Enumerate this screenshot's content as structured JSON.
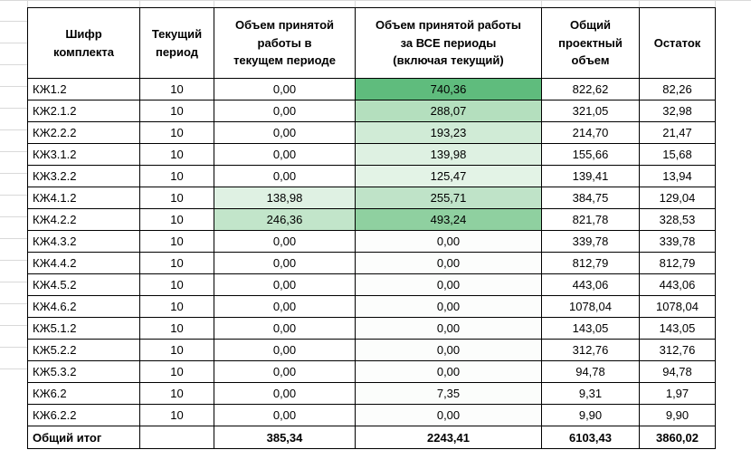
{
  "sheet": {
    "grid_color": "#D9D9D9",
    "cell_border_color": "#000000",
    "scale_max_color": "#63BE7B",
    "headers": {
      "code": "Шифр\nкомплекта",
      "period": "Текущий\nпериод",
      "current": "Объем принятой\nработы в\nтекущем периоде",
      "all_periods": "Объем принятой работы\nза ВСЕ периоды\n(включая текущий)",
      "project": "Общий\nпроектный\nобъем",
      "remainder": "Остаток"
    },
    "rows": [
      {
        "code": "КЖ1.2",
        "period": "10",
        "current": "0,00",
        "current_bg": "#FFFFFF",
        "all_periods": "740,36",
        "all_bg": "#5FBC7D",
        "project": "822,62",
        "remainder": "82,26"
      },
      {
        "code": "КЖ2.1.2",
        "period": "10",
        "current": "0,00",
        "current_bg": "#FFFFFF",
        "all_periods": "288,07",
        "all_bg": "#B4DFBE",
        "project": "321,05",
        "remainder": "32,98"
      },
      {
        "code": "КЖ2.2.2",
        "period": "10",
        "current": "0,00",
        "current_bg": "#FFFFFF",
        "all_periods": "193,23",
        "all_bg": "#D0EBD6",
        "project": "214,70",
        "remainder": "21,47"
      },
      {
        "code": "КЖ3.1.2",
        "period": "10",
        "current": "0,00",
        "current_bg": "#FFFFFF",
        "all_periods": "139,98",
        "all_bg": "#DEF1E2",
        "project": "155,66",
        "remainder": "15,68"
      },
      {
        "code": "КЖ3.2.2",
        "period": "10",
        "current": "0,00",
        "current_bg": "#FFFFFF",
        "all_periods": "125,47",
        "all_bg": "#E3F3E6",
        "project": "139,41",
        "remainder": "13,94"
      },
      {
        "code": "КЖ4.1.2",
        "period": "10",
        "current": "138,98",
        "current_bg": "#DFF1E3",
        "all_periods": "255,71",
        "all_bg": "#BFE3C8",
        "project": "384,75",
        "remainder": "129,04"
      },
      {
        "code": "КЖ4.2.2",
        "period": "10",
        "current": "246,36",
        "current_bg": "#C2E5CA",
        "all_periods": "493,24",
        "all_bg": "#8FD0A0",
        "project": "821,78",
        "remainder": "328,53"
      },
      {
        "code": "КЖ4.3.2",
        "period": "10",
        "current": "0,00",
        "current_bg": "#FFFFFF",
        "all_periods": "0,00",
        "all_bg": "#FCFDFC",
        "project": "339,78",
        "remainder": "339,78"
      },
      {
        "code": "КЖ4.4.2",
        "period": "10",
        "current": "0,00",
        "current_bg": "#FFFFFF",
        "all_periods": "0,00",
        "all_bg": "#FCFDFC",
        "project": "812,79",
        "remainder": "812,79"
      },
      {
        "code": "КЖ4.5.2",
        "period": "10",
        "current": "0,00",
        "current_bg": "#FFFFFF",
        "all_periods": "0,00",
        "all_bg": "#FCFDFC",
        "project": "443,06",
        "remainder": "443,06"
      },
      {
        "code": "КЖ4.6.2",
        "period": "10",
        "current": "0,00",
        "current_bg": "#FFFFFF",
        "all_periods": "0,00",
        "all_bg": "#FCFDFC",
        "project": "1078,04",
        "remainder": "1078,04"
      },
      {
        "code": "КЖ5.1.2",
        "period": "10",
        "current": "0,00",
        "current_bg": "#FFFFFF",
        "all_periods": "0,00",
        "all_bg": "#FCFDFC",
        "project": "143,05",
        "remainder": "143,05"
      },
      {
        "code": "КЖ5.2.2",
        "period": "10",
        "current": "0,00",
        "current_bg": "#FFFFFF",
        "all_periods": "0,00",
        "all_bg": "#FCFDFC",
        "project": "312,76",
        "remainder": "312,76"
      },
      {
        "code": "КЖ5.3.2",
        "period": "10",
        "current": "0,00",
        "current_bg": "#FFFFFF",
        "all_periods": "0,00",
        "all_bg": "#FCFDFC",
        "project": "94,78",
        "remainder": "94,78"
      },
      {
        "code": "КЖ6.2",
        "period": "10",
        "current": "0,00",
        "current_bg": "#FFFFFF",
        "all_periods": "7,35",
        "all_bg": "#FBFDFB",
        "project": "9,31",
        "remainder": "1,97"
      },
      {
        "code": "КЖ6.2.2",
        "period": "10",
        "current": "0,00",
        "current_bg": "#FFFFFF",
        "all_periods": "0,00",
        "all_bg": "#FCFDFC",
        "project": "9,90",
        "remainder": "9,90"
      }
    ],
    "total": {
      "label": "Общий итог",
      "period": "",
      "current": "385,34",
      "all_periods": "2243,41",
      "project": "6103,43",
      "remainder": "3860,02"
    }
  }
}
